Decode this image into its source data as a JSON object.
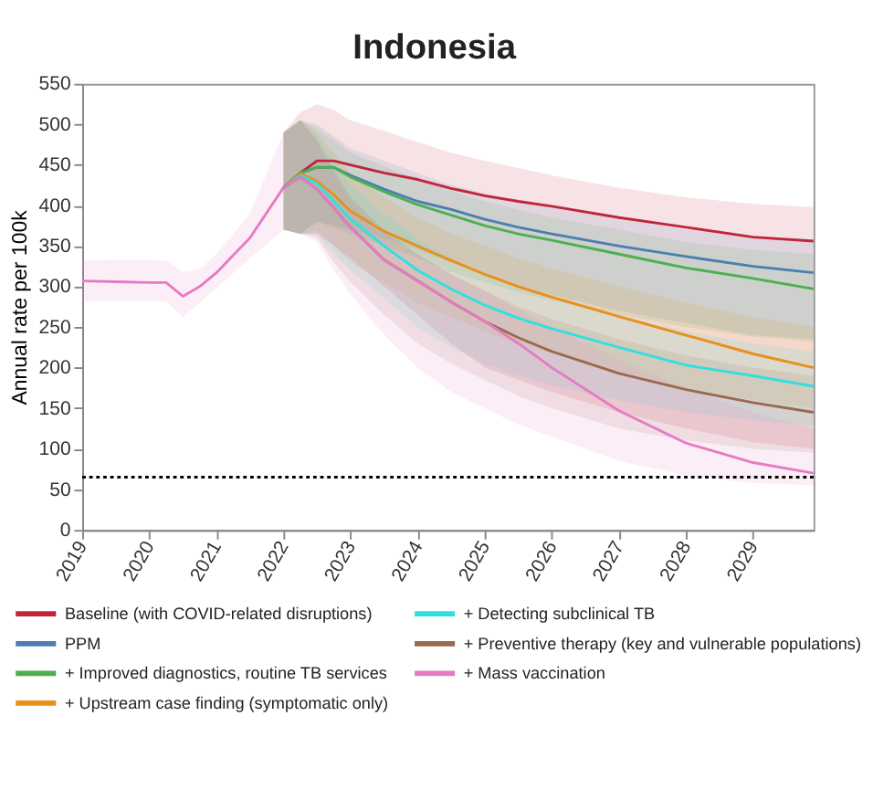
{
  "chart_data": {
    "type": "line",
    "title": "Indonesia",
    "ylabel": "Annual rate per 100k",
    "x": [
      2019,
      2019.5,
      2020,
      2020.25,
      2020.5,
      2020.75,
      2021,
      2021.5,
      2022,
      2022.25,
      2022.5,
      2022.75,
      2023,
      2023.5,
      2024,
      2024.5,
      2025,
      2025.5,
      2026,
      2027,
      2028,
      2029,
      2029.9
    ],
    "xlim": [
      2019,
      2029.9
    ],
    "xticks": [
      2019,
      2020,
      2021,
      2022,
      2023,
      2024,
      2025,
      2026,
      2027,
      2028,
      2029
    ],
    "ylim": [
      0,
      550
    ],
    "yticks": [
      0,
      50,
      100,
      150,
      200,
      250,
      300,
      350,
      400,
      450,
      500,
      550
    ],
    "grid": false,
    "legend": "bottom",
    "line_style": "solid",
    "marker": "none",
    "ref_lines": [
      {
        "axis": "y",
        "value": 65,
        "color": "#000000",
        "line_style": "dotted"
      }
    ],
    "series": [
      {
        "name": "Baseline (with COVID-related disruptions)",
        "color": "#c0263b",
        "values": [
          null,
          null,
          null,
          null,
          null,
          null,
          null,
          null,
          422,
          440,
          455,
          455,
          450,
          440,
          432,
          421,
          412,
          405,
          399,
          385,
          373,
          361,
          356
        ],
        "lower": [
          null,
          null,
          null,
          null,
          null,
          null,
          null,
          null,
          370,
          365,
          365,
          350,
          335,
          300,
          265,
          230,
          200,
          185,
          170,
          145,
          125,
          108,
          100
        ],
        "upper": [
          null,
          null,
          null,
          null,
          null,
          null,
          null,
          null,
          490,
          515,
          525,
          518,
          505,
          492,
          478,
          465,
          455,
          446,
          437,
          422,
          410,
          402,
          398
        ]
      },
      {
        "name": "PPM",
        "color": "#4a7fb0",
        "values": [
          null,
          null,
          null,
          null,
          null,
          null,
          null,
          null,
          422,
          440,
          447,
          447,
          437,
          420,
          405,
          395,
          383,
          373,
          365,
          350,
          337,
          325,
          317
        ],
        "lower": [
          null,
          null,
          null,
          null,
          null,
          null,
          null,
          null,
          370,
          365,
          380,
          375,
          370,
          360,
          345,
          330,
          315,
          300,
          290,
          270,
          255,
          240,
          235
        ],
        "upper": [
          null,
          null,
          null,
          null,
          null,
          null,
          null,
          null,
          490,
          505,
          500,
          485,
          470,
          455,
          440,
          425,
          415,
          405,
          397,
          383,
          370,
          360,
          355
        ]
      },
      {
        "name": "+ Improved diagnostics, routine TB services",
        "color": "#4caf50",
        "values": [
          null,
          null,
          null,
          null,
          null,
          null,
          null,
          null,
          422,
          440,
          447,
          447,
          435,
          417,
          401,
          388,
          375,
          365,
          357,
          340,
          323,
          310,
          297
        ],
        "lower": [
          null,
          null,
          null,
          null,
          null,
          null,
          null,
          null,
          370,
          365,
          380,
          372,
          365,
          350,
          335,
          318,
          305,
          293,
          283,
          265,
          250,
          238,
          232
        ],
        "upper": [
          null,
          null,
          null,
          null,
          null,
          null,
          null,
          null,
          490,
          505,
          495,
          480,
          465,
          448,
          432,
          418,
          405,
          395,
          385,
          370,
          355,
          345,
          340
        ]
      },
      {
        "name": "+ Upstream case finding (symptomatic only)",
        "color": "#e8901a",
        "values": [
          null,
          null,
          null,
          null,
          null,
          null,
          null,
          null,
          422,
          439,
          430,
          413,
          393,
          368,
          350,
          332,
          315,
          300,
          287,
          263,
          240,
          217,
          200
        ],
        "lower": [
          null,
          null,
          null,
          null,
          null,
          null,
          null,
          null,
          370,
          365,
          370,
          350,
          330,
          305,
          280,
          262,
          245,
          230,
          218,
          195,
          175,
          160,
          150
        ],
        "upper": [
          null,
          null,
          null,
          null,
          null,
          null,
          null,
          null,
          490,
          505,
          490,
          465,
          440,
          410,
          385,
          365,
          350,
          335,
          322,
          300,
          280,
          262,
          250
        ]
      },
      {
        "name": "+ Detecting subclinical TB",
        "color": "#30e0e0",
        "values": [
          null,
          null,
          null,
          null,
          null,
          null,
          null,
          null,
          422,
          437,
          427,
          405,
          383,
          350,
          320,
          297,
          277,
          261,
          248,
          225,
          203,
          190,
          177
        ],
        "lower": [
          null,
          null,
          null,
          null,
          null,
          null,
          null,
          null,
          370,
          365,
          365,
          340,
          320,
          285,
          250,
          225,
          205,
          190,
          178,
          160,
          145,
          135,
          128
        ],
        "upper": [
          null,
          null,
          null,
          null,
          null,
          null,
          null,
          null,
          490,
          505,
          485,
          455,
          425,
          390,
          360,
          335,
          315,
          300,
          287,
          265,
          245,
          230,
          220
        ]
      },
      {
        "name": "+ Preventive therapy (key and vulnerable populations)",
        "color": "#9b6a4e",
        "values": [
          null,
          null,
          null,
          null,
          null,
          null,
          null,
          null,
          422,
          435,
          420,
          397,
          373,
          333,
          307,
          281,
          257,
          237,
          220,
          193,
          173,
          157,
          145
        ],
        "lower": [
          null,
          null,
          null,
          null,
          null,
          null,
          null,
          null,
          370,
          365,
          360,
          330,
          305,
          265,
          230,
          205,
          185,
          165,
          150,
          125,
          110,
          100,
          95
        ],
        "upper": [
          null,
          null,
          null,
          null,
          null,
          null,
          null,
          null,
          490,
          505,
          480,
          445,
          410,
          370,
          340,
          315,
          295,
          275,
          260,
          235,
          215,
          200,
          190
        ]
      },
      {
        "name": "+ Mass vaccination",
        "color": "#e67bc4",
        "values": [
          307,
          306,
          305,
          305,
          288,
          300,
          317,
          360,
          422,
          435,
          420,
          397,
          373,
          333,
          307,
          281,
          257,
          230,
          200,
          147,
          107,
          83,
          70
        ],
        "lower": [
          282,
          282,
          282,
          282,
          262,
          280,
          298,
          335,
          370,
          365,
          355,
          320,
          290,
          240,
          200,
          170,
          150,
          130,
          115,
          85,
          67,
          58,
          55
        ],
        "upper": [
          332,
          333,
          333,
          332,
          318,
          322,
          340,
          390,
          490,
          505,
          480,
          440,
          405,
          365,
          340,
          315,
          295,
          272,
          250,
          210,
          175,
          145,
          125
        ]
      }
    ]
  }
}
